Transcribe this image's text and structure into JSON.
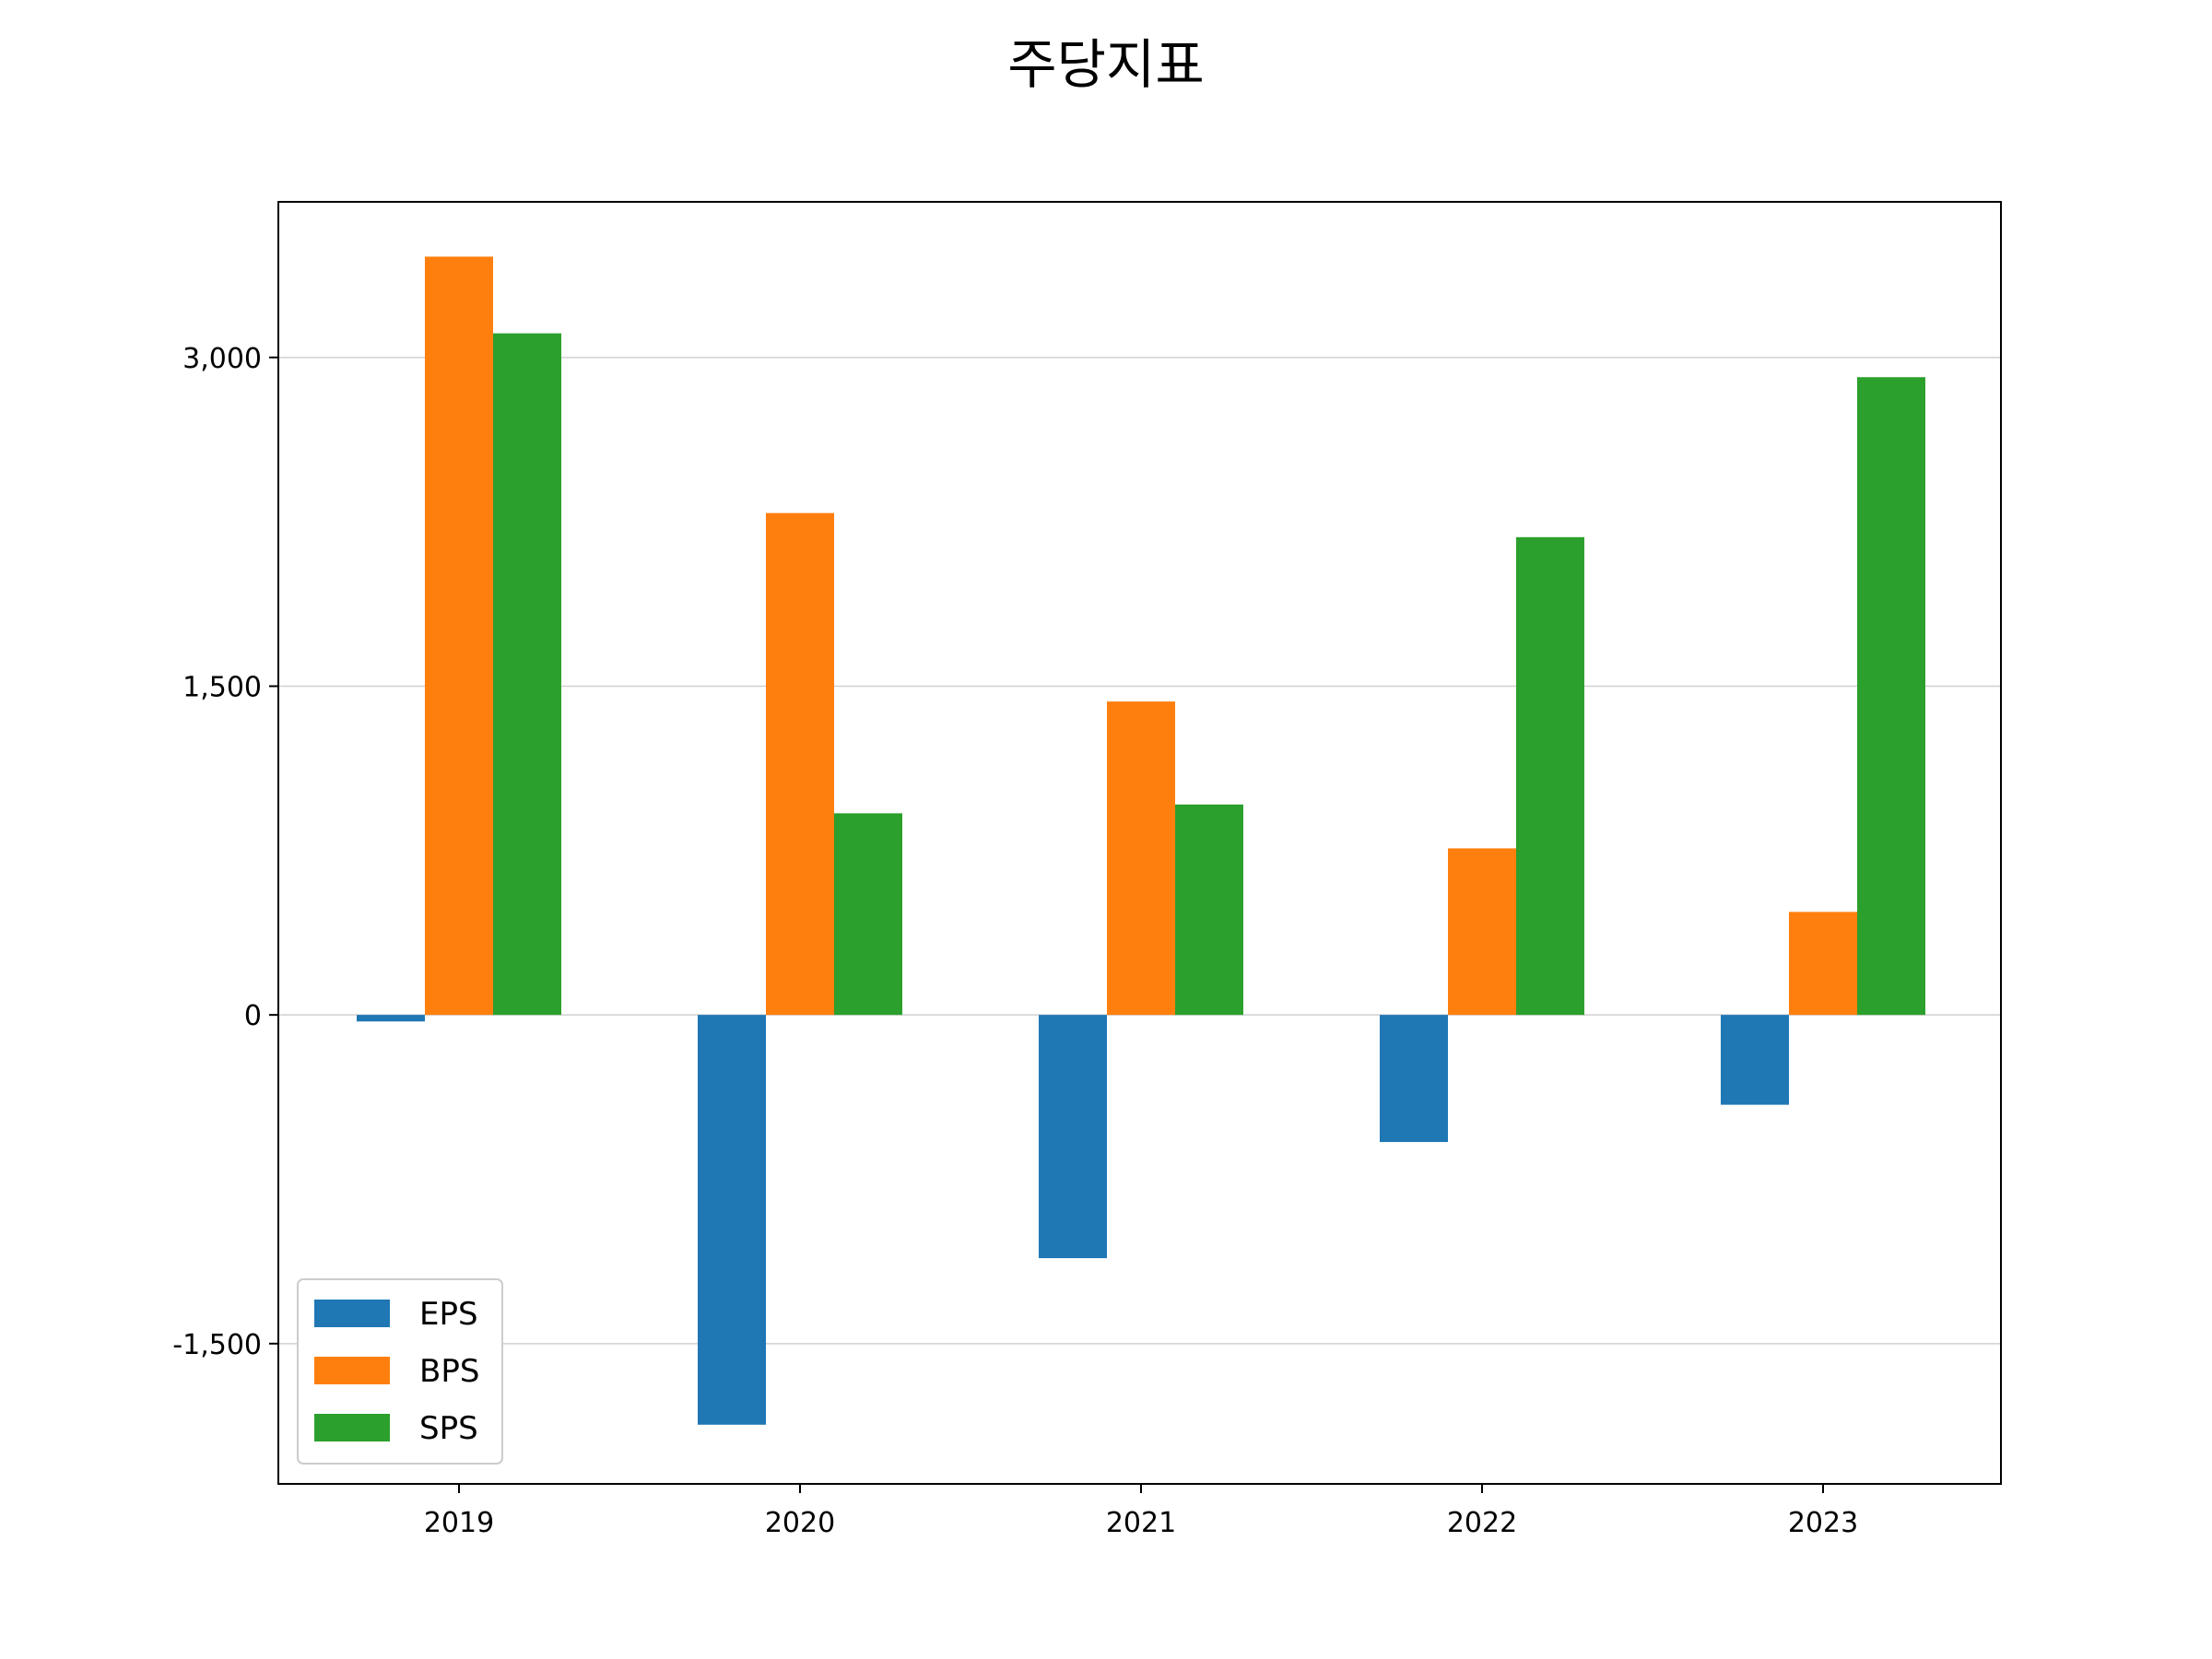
{
  "chart_data": {
    "type": "bar",
    "title": "주당지표",
    "xlabel": "",
    "ylabel": "",
    "categories": [
      "2019",
      "2020",
      "2021",
      "2022",
      "2023"
    ],
    "series": [
      {
        "name": "EPS",
        "color": "#1f77b4",
        "values": [
          -30,
          -1870,
          -1110,
          -580,
          -410
        ]
      },
      {
        "name": "BPS",
        "color": "#ff7f0e",
        "values": [
          3460,
          2290,
          1430,
          760,
          470
        ]
      },
      {
        "name": "SPS",
        "color": "#2ca02c",
        "values": [
          3110,
          920,
          960,
          2180,
          2910
        ]
      }
    ],
    "ylim": [
      -2140,
      3710
    ],
    "yticks": [
      -1500,
      0,
      1500,
      3000
    ],
    "ytick_labels": [
      "-1,500",
      "0",
      "1,500",
      "3,000"
    ],
    "grid": "y",
    "legend": "lower-left"
  }
}
